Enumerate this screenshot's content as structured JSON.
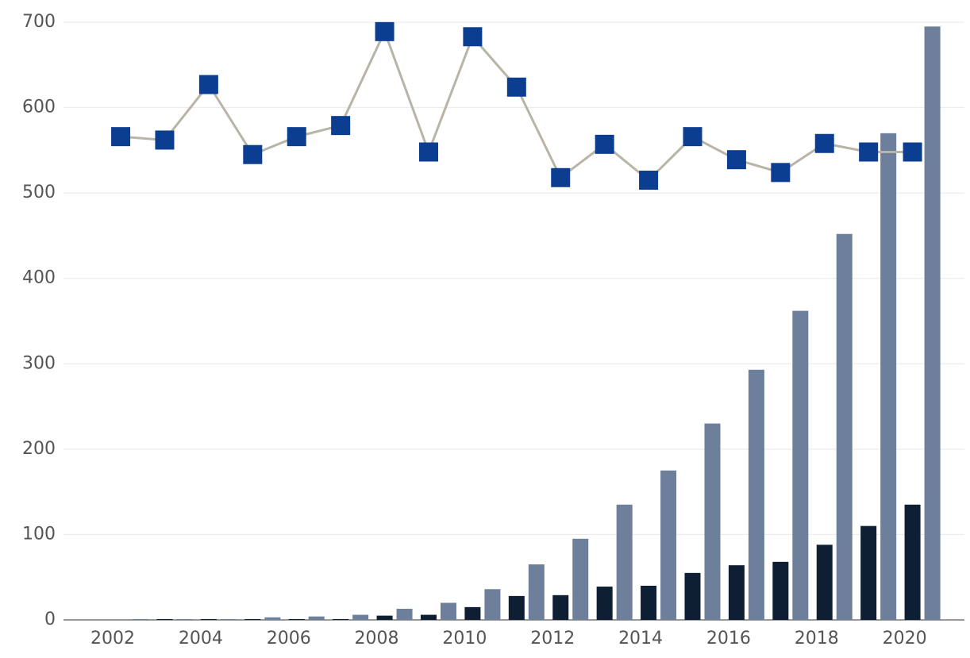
{
  "chart_data": {
    "type": "combo",
    "x": [
      2002,
      2003,
      2004,
      2005,
      2006,
      2007,
      2008,
      2009,
      2010,
      2011,
      2012,
      2013,
      2014,
      2015,
      2016,
      2017,
      2018,
      2019,
      2020
    ],
    "series": [
      {
        "type": "bar",
        "color": "#0f1f33",
        "values": [
          0,
          1,
          1,
          1,
          1,
          1,
          5,
          6,
          15,
          28,
          29,
          39,
          40,
          55,
          64,
          68,
          88,
          110,
          135
        ]
      },
      {
        "type": "bar",
        "color": "#6e7f9b",
        "values": [
          1,
          1,
          1,
          3,
          4,
          6,
          13,
          20,
          36,
          65,
          95,
          135,
          175,
          230,
          293,
          362,
          452,
          570,
          695
        ]
      },
      {
        "type": "line",
        "color": "#b8b4a6",
        "marker_color": "#0b3d91",
        "values": [
          566,
          562,
          627,
          545,
          566,
          579,
          689,
          548,
          683,
          624,
          518,
          557,
          515,
          566,
          539,
          524,
          558,
          548,
          548
        ]
      }
    ],
    "xlim": [
      2000.7,
      2021
    ],
    "xticks": [
      2002,
      2004,
      2006,
      2008,
      2010,
      2012,
      2014,
      2016,
      2018,
      2020
    ],
    "ylim": [
      0,
      700
    ],
    "yticks": [
      0,
      100,
      200,
      300,
      400,
      500,
      600,
      700
    ],
    "grid": true
  }
}
